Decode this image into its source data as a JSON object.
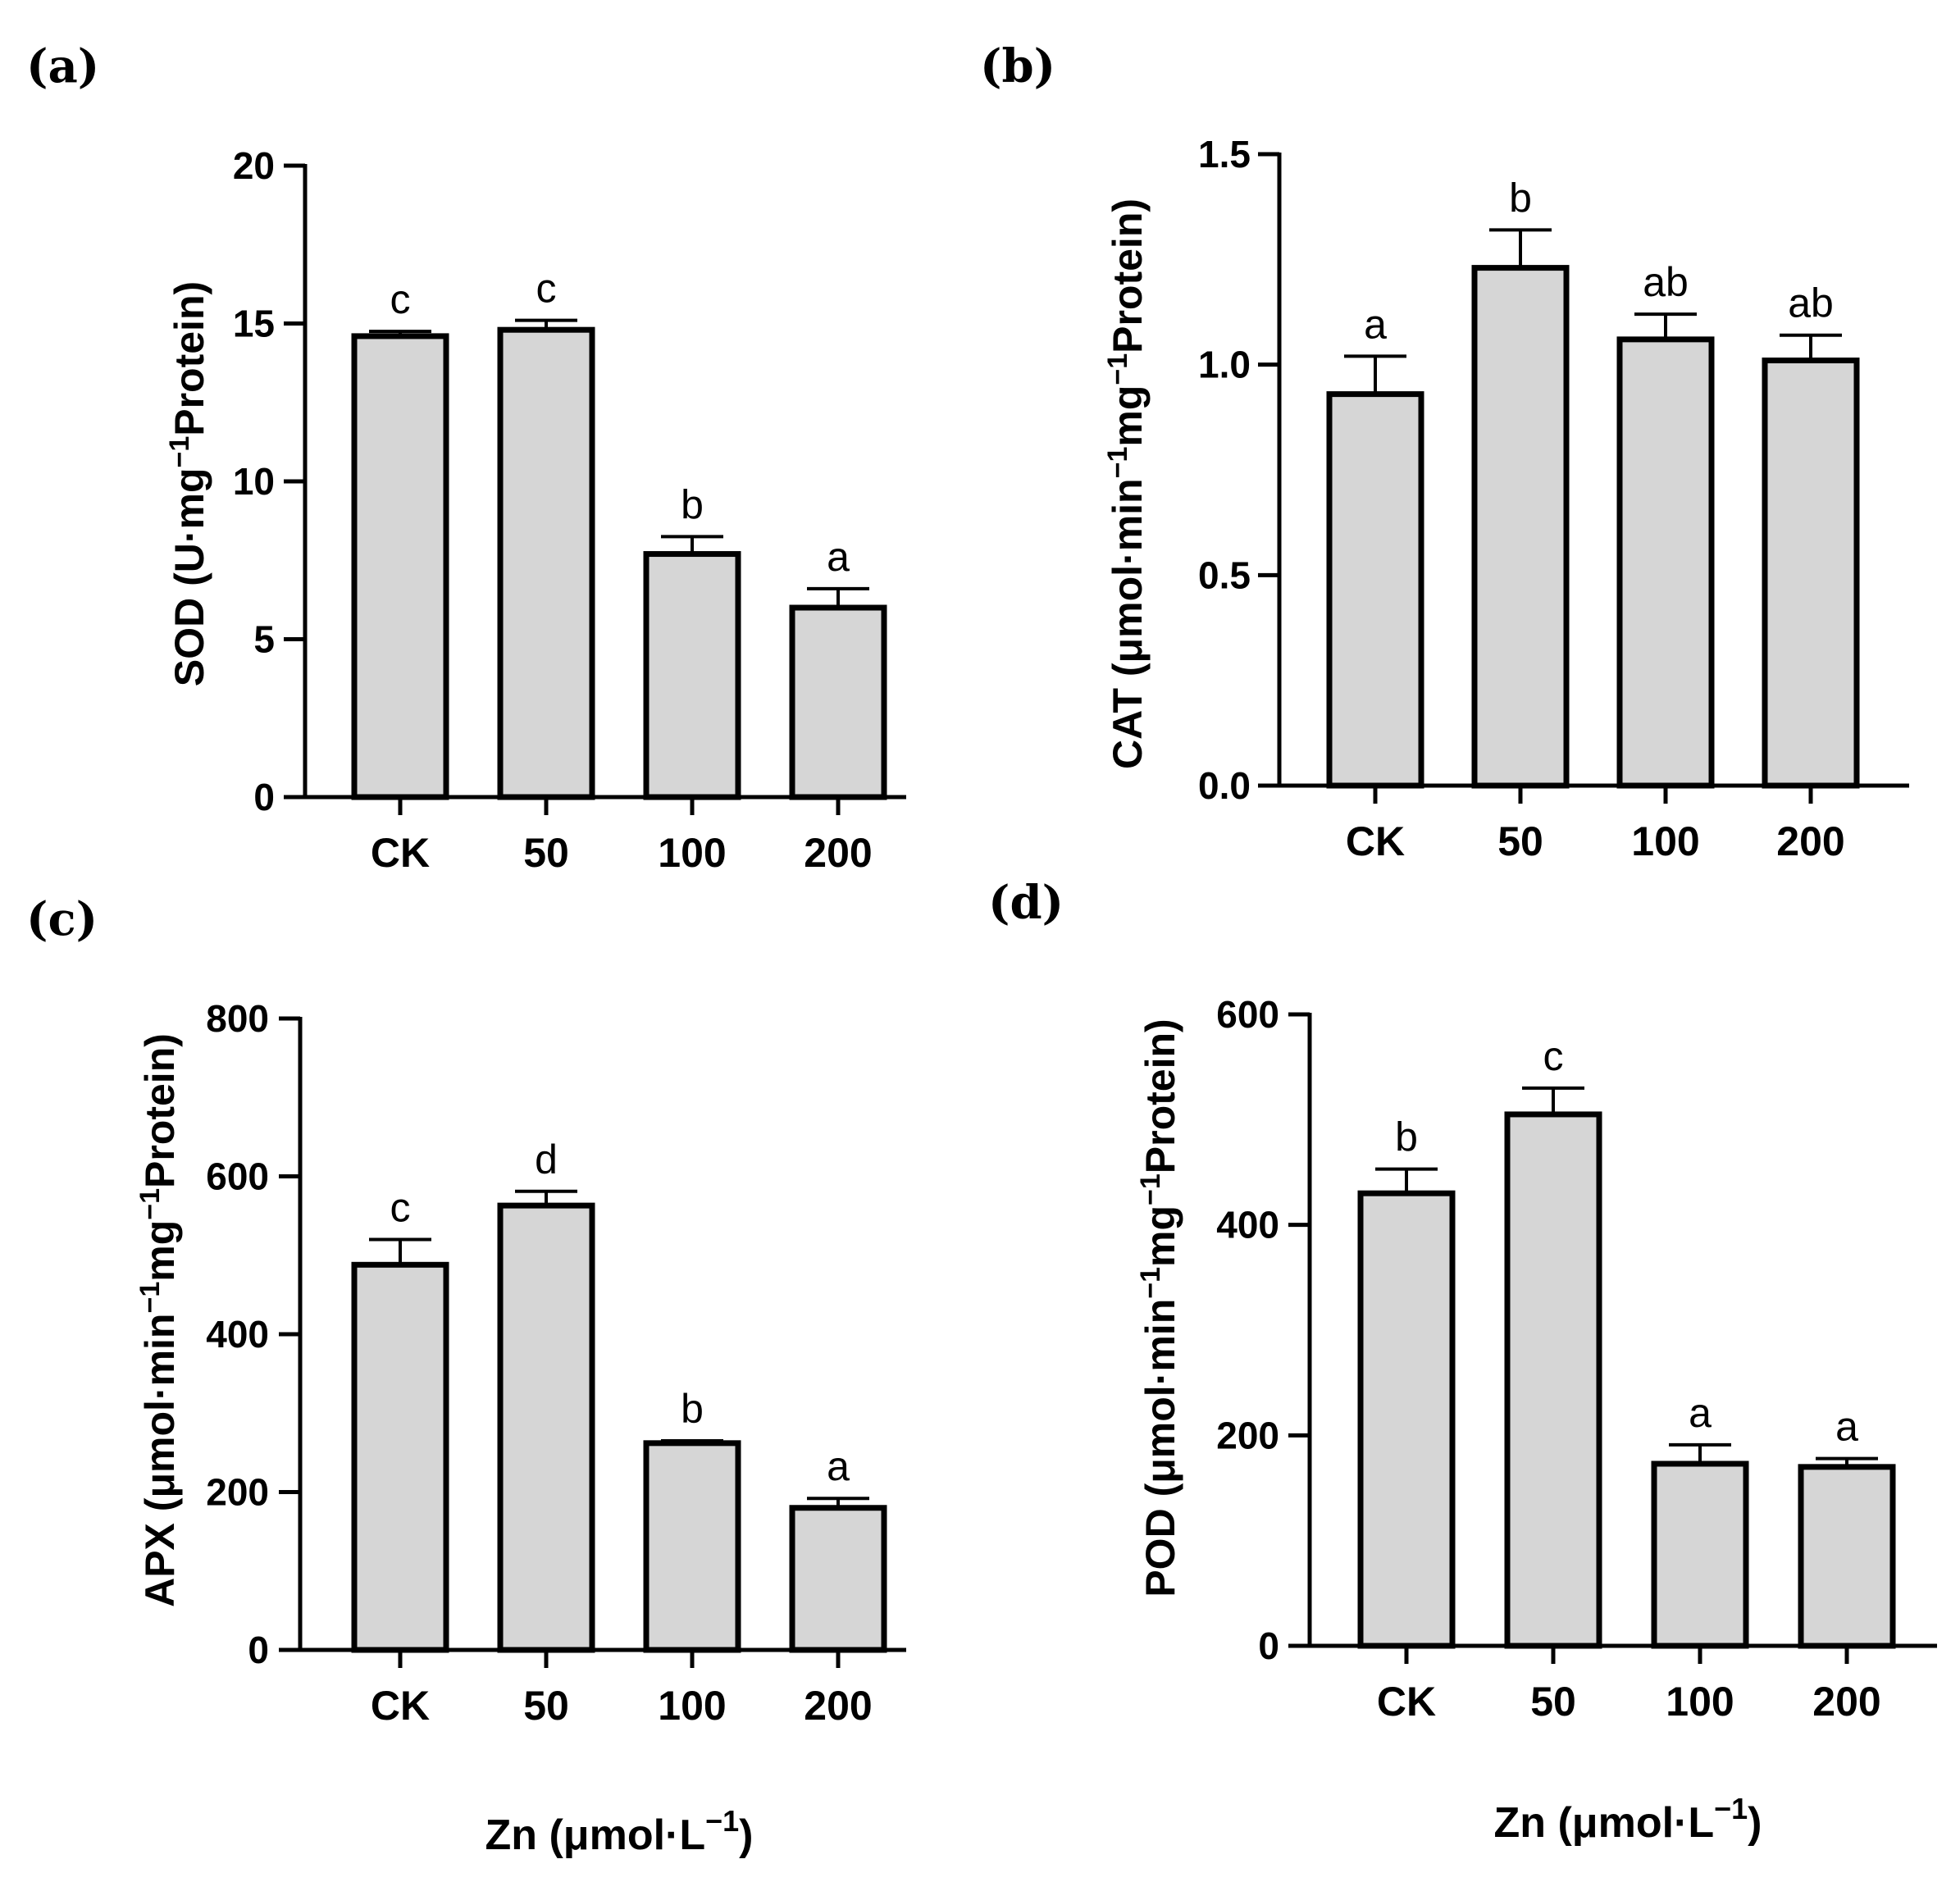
{
  "chart_data": [
    {
      "type": "bar",
      "panel": "(a)",
      "ylabel_main": "SOD (U·mg",
      "ylabel_sup": "−1",
      "ylabel_tail": "Protein)",
      "ylim": [
        0,
        20
      ],
      "yticks": [
        0,
        5,
        10,
        15,
        20
      ],
      "ytick_labels": [
        "0",
        "5",
        "10",
        "15",
        "20"
      ],
      "categories": [
        "CK",
        "50",
        "100",
        "200"
      ],
      "values": [
        14.6,
        14.8,
        7.7,
        6.0
      ],
      "errors": [
        0.15,
        0.3,
        0.55,
        0.6
      ],
      "letters": [
        "c",
        "c",
        "b",
        "a"
      ]
    },
    {
      "type": "bar",
      "panel": "(b)",
      "ylabel_main": "CAT (μmol·min",
      "ylabel_sup": "−1",
      "ylabel_mid": "mg",
      "ylabel_sup2": "−1",
      "ylabel_tail": "Protein)",
      "ylim": [
        0,
        1.5
      ],
      "yticks": [
        0,
        0.5,
        1.0,
        1.5
      ],
      "ytick_labels": [
        "0.0",
        "0.5",
        "1.0",
        "1.5"
      ],
      "categories": [
        "CK",
        "50",
        "100",
        "200"
      ],
      "values": [
        0.93,
        1.23,
        1.06,
        1.01
      ],
      "errors": [
        0.09,
        0.09,
        0.06,
        0.06
      ],
      "letters": [
        "a",
        "b",
        "ab",
        "ab"
      ]
    },
    {
      "type": "bar",
      "panel": "(c)",
      "ylabel_main": "APX (μmol·min",
      "ylabel_sup": "−1",
      "ylabel_mid": "mg",
      "ylabel_sup2": "−1",
      "ylabel_tail": "Protein)",
      "ylim": [
        0,
        800
      ],
      "yticks": [
        0,
        200,
        400,
        600,
        800
      ],
      "ytick_labels": [
        "0",
        "200",
        "400",
        "600",
        "800"
      ],
      "categories": [
        "CK",
        "50",
        "100",
        "200"
      ],
      "values": [
        488,
        563,
        262,
        180
      ],
      "errors": [
        32,
        18,
        3,
        12
      ],
      "letters": [
        "c",
        "d",
        "b",
        "a"
      ],
      "xlabel_main": "Zn (μmol·L",
      "xlabel_sup": "−1",
      "xlabel_tail": ")"
    },
    {
      "type": "bar",
      "panel": "(d)",
      "ylabel_main": "POD (μmol·min",
      "ylabel_sup": "−1",
      "ylabel_mid": "mg",
      "ylabel_sup2": "−1",
      "ylabel_tail": "Protein)",
      "ylim": [
        0,
        600
      ],
      "yticks": [
        0,
        200,
        400,
        600
      ],
      "ytick_labels": [
        "0",
        "200",
        "400",
        "600"
      ],
      "categories": [
        "CK",
        "50",
        "100",
        "200"
      ],
      "values": [
        430,
        505,
        173,
        170
      ],
      "errors": [
        23,
        25,
        18,
        8
      ],
      "letters": [
        "b",
        "c",
        "a",
        "a"
      ],
      "xlabel_main": "Zn (μmol·L",
      "xlabel_sup": "−1",
      "xlabel_tail": ")"
    }
  ]
}
